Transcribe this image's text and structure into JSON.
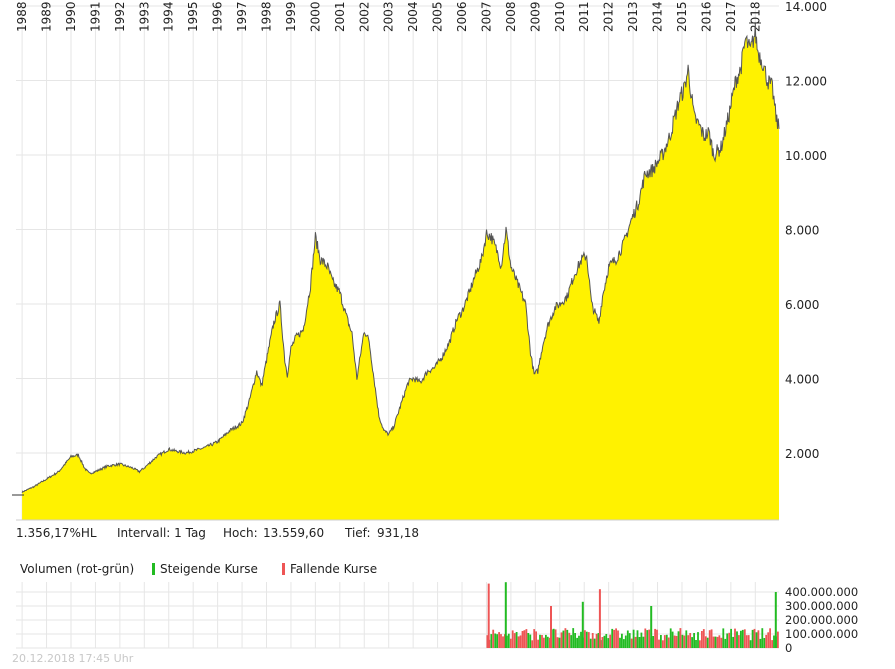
{
  "info": {
    "change": "1.356,17%HL",
    "interval": "Intervall: 1 Tag",
    "high_label": "Hoch:",
    "high_value": "13.559,60",
    "low_label": "Tief:",
    "low_value": "931,18"
  },
  "volume_legend": {
    "title": "Volumen (rot-grün)",
    "rising": "Steigende Kurse",
    "falling": "Fallende Kurse"
  },
  "timestamp": "20.12.2018 17:45 Uhr",
  "colors": {
    "area_fill": "#fff200",
    "price_line": "#555555",
    "rising": "#22bb22",
    "falling": "#ee5555",
    "grid": "#e6e6e6"
  },
  "chart_data": [
    {
      "type": "area",
      "x_ticks": [
        "1988",
        "1989",
        "1990",
        "1991",
        "1992",
        "1993",
        "1994",
        "1995",
        "1996",
        "1997",
        "1998",
        "1999",
        "2000",
        "2001",
        "2002",
        "2003",
        "2004",
        "2005",
        "2006",
        "2007",
        "2008",
        "2009",
        "2010",
        "2011",
        "2012",
        "2013",
        "2014",
        "2015",
        "2016",
        "2017",
        "2018"
      ],
      "y_ticks": [
        2000,
        4000,
        6000,
        8000,
        10000,
        12000,
        14000
      ],
      "y_tick_labels": [
        "2.000",
        "4.000",
        "6.000",
        "8.000",
        "10.000",
        "12.000",
        "14.000"
      ],
      "ylim": [
        200,
        14000
      ],
      "xlim": [
        1987.75,
        2018.97
      ],
      "grid": true,
      "x": [
        1988.0,
        1988.5,
        1989.0,
        1989.5,
        1990.0,
        1990.3,
        1990.55,
        1990.75,
        1991.0,
        1991.5,
        1992.0,
        1992.5,
        1992.8,
        1993.0,
        1993.5,
        1994.0,
        1994.3,
        1994.7,
        1995.0,
        1995.5,
        1996.0,
        1996.5,
        1997.0,
        1997.3,
        1997.6,
        1997.8,
        1998.0,
        1998.3,
        1998.55,
        1998.75,
        1998.85,
        1999.0,
        1999.2,
        1999.5,
        1999.8,
        2000.0,
        2000.2,
        2000.5,
        2000.7,
        2001.0,
        2001.3,
        2001.5,
        2001.7,
        2002.0,
        2002.2,
        2002.4,
        2002.6,
        2002.8,
        2003.0,
        2003.2,
        2003.5,
        2003.8,
        2004.0,
        2004.3,
        2004.6,
        2004.9,
        2005.2,
        2005.5,
        2005.8,
        2006.0,
        2006.3,
        2006.5,
        2006.8,
        2007.0,
        2007.2,
        2007.5,
        2007.6,
        2007.8,
        2008.0,
        2008.3,
        2008.6,
        2008.8,
        2008.95,
        2009.1,
        2009.3,
        2009.5,
        2009.8,
        2010.0,
        2010.3,
        2010.6,
        2010.9,
        2011.1,
        2011.3,
        2011.6,
        2011.75,
        2012.0,
        2012.3,
        2012.6,
        2012.9,
        2013.2,
        2013.5,
        2013.8,
        2014.0,
        2014.2,
        2014.5,
        2014.7,
        2014.9,
        2015.1,
        2015.25,
        2015.5,
        2015.7,
        2015.9,
        2016.1,
        2016.3,
        2016.6,
        2016.9,
        2017.2,
        2017.4,
        2017.6,
        2017.8,
        2018.0,
        2018.1,
        2018.3,
        2018.5,
        2018.7,
        2018.85,
        2018.97
      ],
      "values": [
        950,
        1100,
        1300,
        1500,
        1900,
        1950,
        1600,
        1450,
        1500,
        1650,
        1700,
        1600,
        1500,
        1600,
        1900,
        2100,
        2050,
        2000,
        2050,
        2150,
        2300,
        2600,
        2800,
        3400,
        4200,
        3800,
        4500,
        5500,
        6000,
        4500,
        4100,
        4800,
        5100,
        5300,
        6500,
        7800,
        7200,
        7000,
        6600,
        6300,
        5600,
        5200,
        4000,
        5300,
        5000,
        4000,
        3000,
        2600,
        2500,
        2700,
        3300,
        3900,
        4000,
        3900,
        4200,
        4300,
        4600,
        5000,
        5600,
        5800,
        6300,
        6700,
        7200,
        7900,
        7800,
        7300,
        7000,
        8000,
        7000,
        6500,
        6000,
        4700,
        4100,
        4200,
        4900,
        5400,
        5900,
        6000,
        6200,
        6800,
        7200,
        7300,
        6000,
        5500,
        6200,
        7000,
        7200,
        7600,
        8200,
        8700,
        9500,
        9600,
        9800,
        10000,
        10500,
        11000,
        11500,
        11800,
        12300,
        11000,
        10800,
        10500,
        10600,
        10000,
        10200,
        11000,
        12000,
        12300,
        13100,
        12800,
        13300,
        12800,
        12500,
        12000,
        11800,
        11000,
        10700
      ]
    },
    {
      "type": "bar",
      "y_ticks": [
        0,
        100000000,
        200000000,
        300000000,
        400000000
      ],
      "y_tick_labels": [
        "0",
        "100.000.000",
        "200.000.000",
        "300.000.000",
        "400.000.000"
      ],
      "ylim": [
        0,
        450000000
      ],
      "x_start": 2007.0,
      "x_end": 2018.97,
      "bar_count": 150,
      "typical_volume": 110000000,
      "spikes": [
        {
          "x": 2007.05,
          "value": 460000000,
          "direction": "falling"
        },
        {
          "x": 2007.75,
          "value": 470000000,
          "direction": "rising"
        },
        {
          "x": 2009.6,
          "value": 300000000,
          "direction": "falling"
        },
        {
          "x": 2010.9,
          "value": 330000000,
          "direction": "rising"
        },
        {
          "x": 2011.6,
          "value": 420000000,
          "direction": "falling"
        },
        {
          "x": 2013.7,
          "value": 300000000,
          "direction": "rising"
        },
        {
          "x": 2018.8,
          "value": 400000000,
          "direction": "rising"
        }
      ]
    }
  ]
}
